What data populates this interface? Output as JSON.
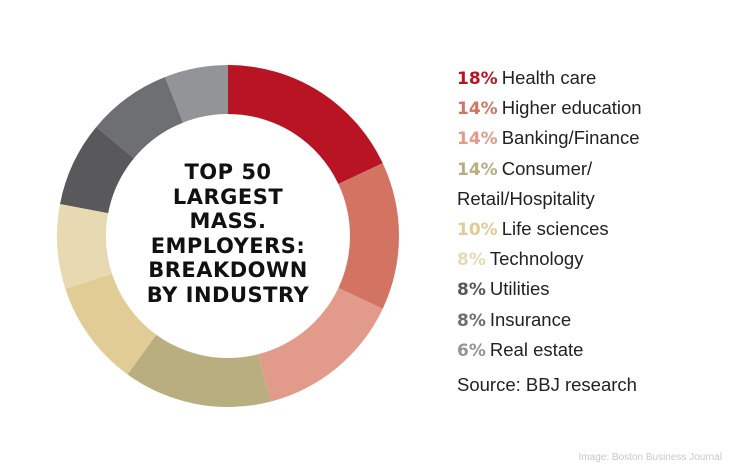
{
  "chart_data": {
    "type": "pie",
    "donut": true,
    "title_lines": [
      "TOP 50",
      "LARGEST",
      "MASS.",
      "EMPLOYERS:",
      "BREAKDOWN",
      "BY INDUSTRY"
    ],
    "slices": [
      {
        "pct_label": "18%",
        "value": 18,
        "label": "Health care",
        "color": "#b81424"
      },
      {
        "pct_label": "14%",
        "value": 14,
        "label": "Higher education",
        "color": "#d37463"
      },
      {
        "pct_label": "14%",
        "value": 14,
        "label": "Banking/Finance",
        "color": "#e29a8a"
      },
      {
        "pct_label": "14%",
        "value": 14,
        "label": "Consumer/",
        "label_cont": "Retail/Hospitality",
        "color": "#b8ae80"
      },
      {
        "pct_label": "10%",
        "value": 10,
        "label": "Life sciences",
        "color": "#e0cc94"
      },
      {
        "pct_label": "8%",
        "value": 8,
        "label": "Technology",
        "color": "#e7dab2"
      },
      {
        "pct_label": "8%",
        "value": 8,
        "label": "Utilities",
        "color": "#59595b"
      },
      {
        "pct_label": "8%",
        "value": 8,
        "label": "Insurance",
        "color": "#6e6f73"
      },
      {
        "pct_label": "6%",
        "value": 6,
        "label": "Real estate",
        "color": "#939497"
      }
    ],
    "source": "Source: BBJ research",
    "legend_position": "right"
  },
  "credit": "Image: Boston Business Journal"
}
